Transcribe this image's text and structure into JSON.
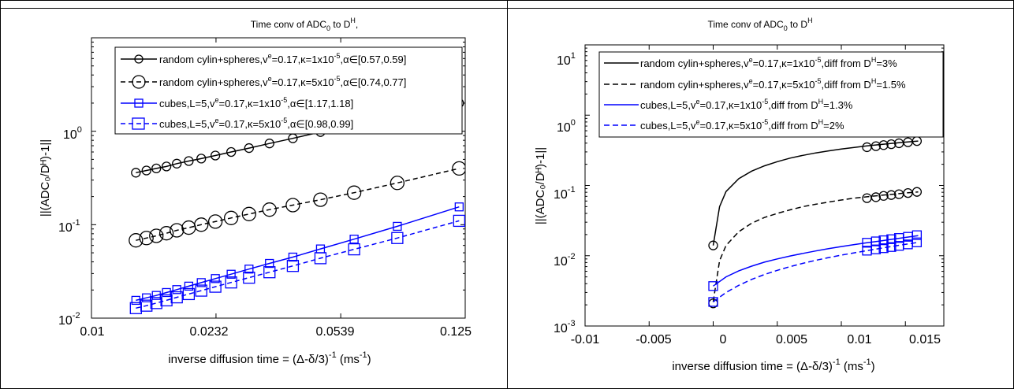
{
  "charts": [
    {
      "type": "line",
      "title_main": "Time conv of ADC",
      "title_sub": "0",
      "title_mid": " to D",
      "title_sup": "H",
      "title_tail": ",",
      "xlabel_main": "inverse diffusion time = (Δ-δ/3)",
      "xlabel_sup1": "-1",
      "xlabel_mid": " (ms",
      "xlabel_sup2": "-1",
      "xlabel_tail": ")",
      "ylabel_text": "||(ADC₀/Dᴴ)-1||",
      "x_scale": "log",
      "y_scale": "log",
      "x_ticks": [
        "0.01",
        "0.0232",
        "0.0539",
        "0.125"
      ],
      "y_ticks": [
        {
          "base": "10",
          "exp": "-2"
        },
        {
          "base": "10",
          "exp": "-1"
        },
        {
          "base": "10",
          "exp": "0"
        }
      ],
      "legend": [
        {
          "prefix": "random cylin+spheres,v",
          "sup1": "e",
          "mid": "=0.17,κ=1x10",
          "sup2": "-5",
          "tail": ",α∈[0.57,0.59]",
          "color": "#000000",
          "dash": false,
          "marker": "circle",
          "marker_size": "small"
        },
        {
          "prefix": "random cylin+spheres,v",
          "sup1": "e",
          "mid": "=0.17,κ=5x10",
          "sup2": "-5",
          "tail": ",α∈[0.74,0.77]",
          "color": "#000000",
          "dash": true,
          "marker": "circle",
          "marker_size": "large"
        },
        {
          "prefix": "cubes,L=5,v",
          "sup1": "e",
          "mid": "=0.17,κ=1x10",
          "sup2": "-5",
          "tail": ",α∈[1.17,1.18]",
          "color": "#0000ff",
          "dash": false,
          "marker": "square",
          "marker_size": "small"
        },
        {
          "prefix": "cubes,L=5,v",
          "sup1": "e",
          "mid": "=0.17,κ=5x10",
          "sup2": "-5",
          "tail": ",α∈[0.98,0.99]",
          "color": "#0000ff",
          "dash": true,
          "marker": "square",
          "marker_size": "large"
        }
      ]
    },
    {
      "type": "line",
      "title_main": "Time conv of ADC",
      "title_sub": "0",
      "title_mid": " to D",
      "title_sup": "H",
      "title_tail": "",
      "xlabel_main": "inverse diffusion time = (Δ-δ/3)",
      "xlabel_sup1": "-1",
      "xlabel_mid": " (ms",
      "xlabel_sup2": "-1",
      "xlabel_tail": ")",
      "ylabel_text": "||(ADC₀/Dᴴ)-1||",
      "x_scale": "linear",
      "y_scale": "log",
      "x_ticks": [
        "-0.01",
        "-0.005",
        "0",
        "0.005",
        "0.01",
        "0.015"
      ],
      "y_ticks": [
        {
          "base": "10",
          "exp": "-3"
        },
        {
          "base": "10",
          "exp": "-2"
        },
        {
          "base": "10",
          "exp": "-1"
        },
        {
          "base": "10",
          "exp": "0"
        },
        {
          "base": "10",
          "exp": "1"
        }
      ],
      "legend": [
        {
          "prefix": "random cylin+spheres,v",
          "sup1": "e",
          "mid": "=0.17,κ=1x10",
          "sup2": "-5",
          "tail": ",diff from D",
          "sup3": "H",
          "tail2": "=3%",
          "color": "#000000",
          "dash": false
        },
        {
          "prefix": "random cylin+spheres,v",
          "sup1": "e",
          "mid": "=0.17,κ=5x10",
          "sup2": "-5",
          "tail": ",diff from D",
          "sup3": "H",
          "tail2": "=1.5%",
          "color": "#000000",
          "dash": true
        },
        {
          "prefix": "cubes,L=5,v",
          "sup1": "e",
          "mid": "=0.17,κ=1x10",
          "sup2": "-5",
          "tail": ",diff from D",
          "sup3": "H",
          "tail2": "=1.3%",
          "color": "#0000ff",
          "dash": false
        },
        {
          "prefix": "cubes,L=5,v",
          "sup1": "e",
          "mid": "=0.17,κ=5x10",
          "sup2": "-5",
          "tail": ",diff from D",
          "sup3": "H",
          "tail2": "=2%",
          "color": "#0000ff",
          "dash": true
        }
      ]
    }
  ],
  "chart_data": [
    {
      "type": "line",
      "title": "Time conv of ADC0 to DH,",
      "xlabel": "inverse diffusion time = (Δ-δ/3)^-1 (ms^-1)",
      "ylabel": "||(ADC0/DH)-1||",
      "x_scale": "log",
      "y_scale": "log",
      "xlim": [
        0.01,
        0.125
      ],
      "ylim": [
        0.01,
        10
      ],
      "grid": false,
      "legend_position": "top-right",
      "series": [
        {
          "name": "random cylin+spheres,ve=0.17,κ=1x10-5,α∈[0.57,0.59]",
          "color": "#000000",
          "dash": false,
          "marker": "circle",
          "x": [
            0.0135,
            0.0145,
            0.0155,
            0.0166,
            0.0178,
            0.0193,
            0.021,
            0.0231,
            0.0257,
            0.029,
            0.0333,
            0.039,
            0.047,
            0.059,
            0.079,
            0.12
          ],
          "y": [
            0.36,
            0.38,
            0.4,
            0.42,
            0.45,
            0.48,
            0.51,
            0.55,
            0.6,
            0.66,
            0.74,
            0.84,
            0.98,
            1.16,
            1.45,
            2.0
          ]
        },
        {
          "name": "random cylin+spheres,ve=0.17,κ=5x10-5,α∈[0.74,0.77]",
          "color": "#000000",
          "dash": true,
          "marker": "circle",
          "x": [
            0.0135,
            0.0145,
            0.0155,
            0.0166,
            0.0178,
            0.0193,
            0.021,
            0.0231,
            0.0257,
            0.029,
            0.0333,
            0.039,
            0.047,
            0.059,
            0.079,
            0.12
          ],
          "y": [
            0.068,
            0.072,
            0.076,
            0.081,
            0.087,
            0.093,
            0.1,
            0.108,
            0.118,
            0.13,
            0.145,
            0.162,
            0.185,
            0.22,
            0.28,
            0.4
          ]
        },
        {
          "name": "cubes,L=5,ve=0.17,κ=1x10-5,α∈[1.17,1.18]",
          "color": "#0000ff",
          "dash": false,
          "marker": "square",
          "x": [
            0.0135,
            0.0145,
            0.0155,
            0.0166,
            0.0178,
            0.0193,
            0.021,
            0.0231,
            0.0257,
            0.029,
            0.0333,
            0.039,
            0.047,
            0.059,
            0.079,
            0.12
          ],
          "y": [
            0.0155,
            0.0165,
            0.0175,
            0.0188,
            0.0202,
            0.022,
            0.024,
            0.0265,
            0.0295,
            0.0335,
            0.0385,
            0.045,
            0.055,
            0.07,
            0.096,
            0.155
          ]
        },
        {
          "name": "cubes,L=5,ve=0.17,κ=5x10-5,α∈[0.98,0.99]",
          "color": "#0000ff",
          "dash": true,
          "marker": "square",
          "x": [
            0.0135,
            0.0145,
            0.0155,
            0.0166,
            0.0178,
            0.0193,
            0.021,
            0.0231,
            0.0257,
            0.029,
            0.0333,
            0.039,
            0.047,
            0.059,
            0.079,
            0.12
          ],
          "y": [
            0.0128,
            0.0136,
            0.0145,
            0.0155,
            0.0167,
            0.0181,
            0.0197,
            0.0217,
            0.0241,
            0.0271,
            0.031,
            0.0362,
            0.0438,
            0.0545,
            0.072,
            0.11
          ]
        }
      ]
    },
    {
      "type": "line",
      "title": "Time conv of ADC0 to DH",
      "xlabel": "inverse diffusion time = (Δ-δ/3)^-1 (ms^-1)",
      "ylabel": "||(ADC0/DH)-1||",
      "x_scale": "linear",
      "y_scale": "log",
      "xlim": [
        -0.01,
        0.018
      ],
      "ylim": [
        0.001,
        10
      ],
      "grid": false,
      "legend_position": "top-right",
      "series": [
        {
          "name": "random cylin+spheres,ve=0.17,κ=1x10-5,diff from DH=3%",
          "color": "#000000",
          "dash": false,
          "curve_x": [
            0,
            0.0005,
            0.001,
            0.002,
            0.003,
            0.004,
            0.005,
            0.006,
            0.007,
            0.008,
            0.009,
            0.01,
            0.011,
            0.012,
            0.013,
            0.014,
            0.015,
            0.016
          ],
          "curve_y": [
            0.014,
            0.05,
            0.082,
            0.125,
            0.16,
            0.19,
            0.218,
            0.245,
            0.268,
            0.29,
            0.31,
            0.33,
            0.348,
            0.365,
            0.382,
            0.398,
            0.413,
            0.428
          ],
          "markers_x": [
            0,
            0,
            0.012,
            0.0127,
            0.0133,
            0.0139,
            0.0145,
            0.0152,
            0.0159
          ],
          "markers_y": [
            0.014,
            0.0021,
            0.35,
            0.362,
            0.375,
            0.386,
            0.398,
            0.412,
            0.428
          ]
        },
        {
          "name": "random cylin+spheres,ve=0.17,κ=5x10-5,diff from DH=1.5%",
          "color": "#000000",
          "dash": true,
          "curve_x": [
            0,
            0.0005,
            0.001,
            0.002,
            0.003,
            0.004,
            0.005,
            0.006,
            0.007,
            0.008,
            0.009,
            0.01,
            0.011,
            0.012,
            0.013,
            0.014,
            0.015,
            0.016
          ],
          "curve_y": [
            0.0022,
            0.0085,
            0.014,
            0.022,
            0.029,
            0.035,
            0.04,
            0.045,
            0.05,
            0.054,
            0.058,
            0.062,
            0.066,
            0.069,
            0.072,
            0.075,
            0.078,
            0.081
          ],
          "markers_x": [
            0.012,
            0.0127,
            0.0133,
            0.0139,
            0.0145,
            0.0152,
            0.0159
          ],
          "markers_y": [
            0.066,
            0.068,
            0.071,
            0.073,
            0.075,
            0.078,
            0.081
          ]
        },
        {
          "name": "cubes,L=5,ve=0.17,κ=1x10-5,diff from DH=1.3%",
          "color": "#0000ff",
          "dash": false,
          "curve_x": [
            0,
            0.001,
            0.002,
            0.003,
            0.004,
            0.005,
            0.006,
            0.007,
            0.008,
            0.009,
            0.01,
            0.011,
            0.012,
            0.013,
            0.014,
            0.015,
            0.016
          ],
          "curve_y": [
            0.0037,
            0.005,
            0.0061,
            0.0071,
            0.0081,
            0.009,
            0.0099,
            0.0108,
            0.0117,
            0.0126,
            0.0135,
            0.0144,
            0.0153,
            0.0162,
            0.0172,
            0.0182,
            0.0193
          ],
          "markers_x": [
            0,
            0.012,
            0.0127,
            0.0133,
            0.0139,
            0.0145,
            0.0152,
            0.0159
          ],
          "markers_y": [
            0.0037,
            0.0153,
            0.016,
            0.0166,
            0.0172,
            0.0179,
            0.0186,
            0.0196
          ]
        },
        {
          "name": "cubes,L=5,ve=0.17,κ=5x10-5,diff from DH=2%",
          "color": "#0000ff",
          "dash": true,
          "curve_x": [
            0,
            0.001,
            0.002,
            0.003,
            0.004,
            0.005,
            0.006,
            0.007,
            0.008,
            0.009,
            0.01,
            0.011,
            0.012,
            0.013,
            0.014,
            0.015,
            0.016
          ],
          "curve_y": [
            0.0022,
            0.003,
            0.0038,
            0.0046,
            0.0054,
            0.0062,
            0.007,
            0.0078,
            0.0086,
            0.0094,
            0.0102,
            0.011,
            0.0118,
            0.0127,
            0.0136,
            0.0145,
            0.0155
          ],
          "markers_x": [
            0,
            0.012,
            0.0127,
            0.0133,
            0.0139,
            0.0145,
            0.0152,
            0.0159
          ],
          "markers_y": [
            0.0022,
            0.0118,
            0.0123,
            0.0128,
            0.0133,
            0.0138,
            0.0145,
            0.0155
          ]
        }
      ]
    }
  ]
}
